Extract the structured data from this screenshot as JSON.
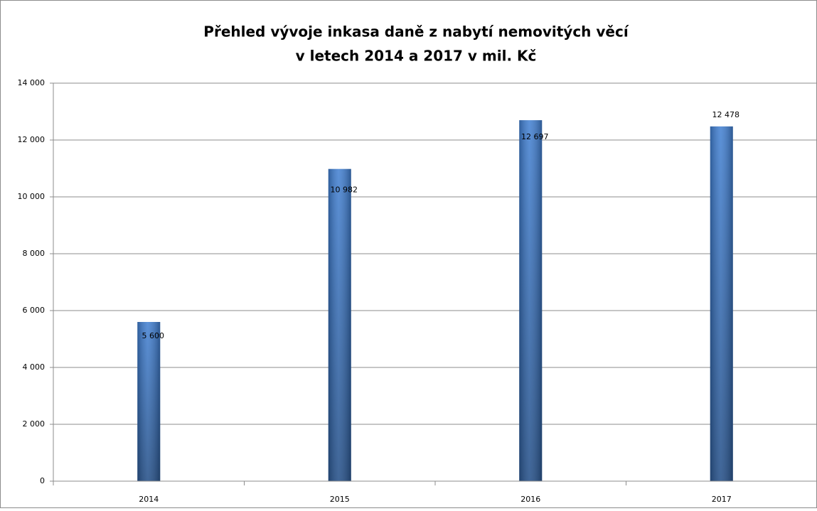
{
  "chart_data": {
    "type": "bar",
    "title": [
      "Přehled vývoje inkasa daně z nabytí nemovitých věcí",
      "v letech 2014 a 2017 v mil. Kč"
    ],
    "categories": [
      "2014",
      "2015",
      "2016",
      "2017"
    ],
    "values": [
      5600,
      10982,
      12697,
      12478
    ],
    "value_labels": [
      "5 600",
      "10 982",
      "12 697",
      "12 478"
    ],
    "color": "#3f7ed1",
    "ylim": [
      0,
      14000
    ],
    "yticks": [
      0,
      {
        "value": 2000,
        "label": "2 000"
      },
      {
        "value": 4000,
        "label": "4 000"
      },
      {
        "value": 6000,
        "label": "6 000"
      },
      {
        "value": 8000,
        "label": "8 000"
      },
      {
        "value": 10000,
        "label": "10 000"
      },
      {
        "value": 12000,
        "label": "12 000"
      },
      {
        "value": 14000,
        "label": "14 000"
      }
    ],
    "grid": true
  }
}
